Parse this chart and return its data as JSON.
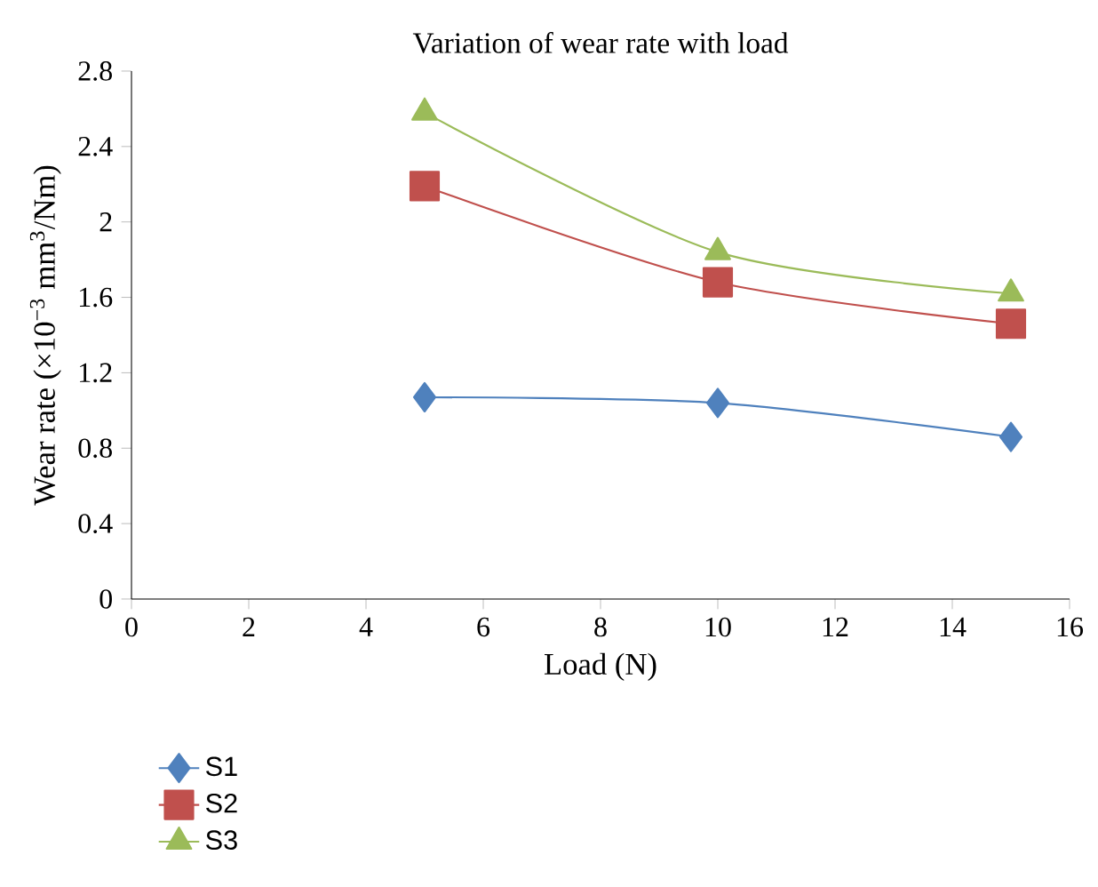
{
  "chart_data": {
    "type": "line",
    "title": "Variation of wear rate with load",
    "xlabel": "Load (N)",
    "ylabel": "Wear rate (×10$^{−3}$ mm$^{3}$/Nm)",
    "x": [
      5,
      10,
      15
    ],
    "series": [
      {
        "name": "S1",
        "color": "#4f81bd",
        "marker": "diamond",
        "values": [
          1.07,
          1.04,
          0.86
        ]
      },
      {
        "name": "S2",
        "color": "#c0504d",
        "marker": "square",
        "values": [
          2.19,
          1.68,
          1.46
        ]
      },
      {
        "name": "S3",
        "color": "#9bbb59",
        "marker": "triangle",
        "values": [
          2.58,
          1.84,
          1.62
        ]
      }
    ],
    "xlim": [
      0,
      16
    ],
    "xticks": [
      0,
      2,
      4,
      6,
      8,
      10,
      12,
      14,
      16
    ],
    "ylim": [
      0,
      2.8
    ],
    "yticks": [
      0,
      0.4,
      0.8,
      1.2,
      1.6,
      2,
      2.4,
      2.8
    ],
    "grid": false,
    "legend": "bottom left",
    "line_style": "solid"
  }
}
